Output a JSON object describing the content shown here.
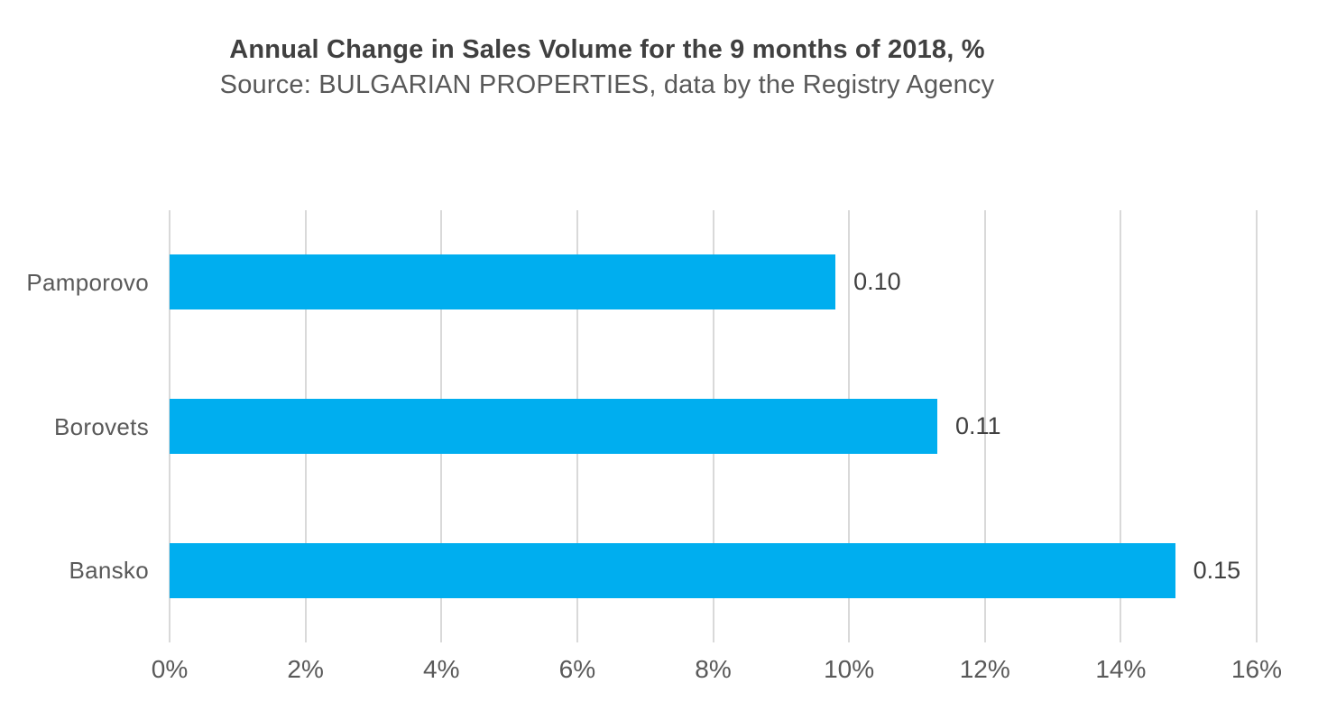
{
  "chart_data": {
    "type": "bar",
    "orientation": "horizontal",
    "title": "Annual Change in Sales Volume for the 9 months of 2018, %",
    "subtitle": "Source: BULGARIAN PROPERTIES, data by the Registry Agency",
    "categories": [
      "Pamporovo",
      "Borovets",
      "Bansko"
    ],
    "values": [
      9.8,
      11.3,
      14.8
    ],
    "value_labels": [
      "0.10",
      "0.11",
      "0.15"
    ],
    "x_ticks": [
      "0%",
      "2%",
      "4%",
      "6%",
      "8%",
      "10%",
      "12%",
      "14%",
      "16%"
    ],
    "xlim": [
      0,
      16
    ],
    "grid": "vertical-on",
    "legend": "none",
    "bar_color": "#00aeef",
    "gridline_color": "#d9d9d9",
    "title_color": "#404040",
    "label_color": "#595959",
    "value_label_color": "#404040"
  }
}
